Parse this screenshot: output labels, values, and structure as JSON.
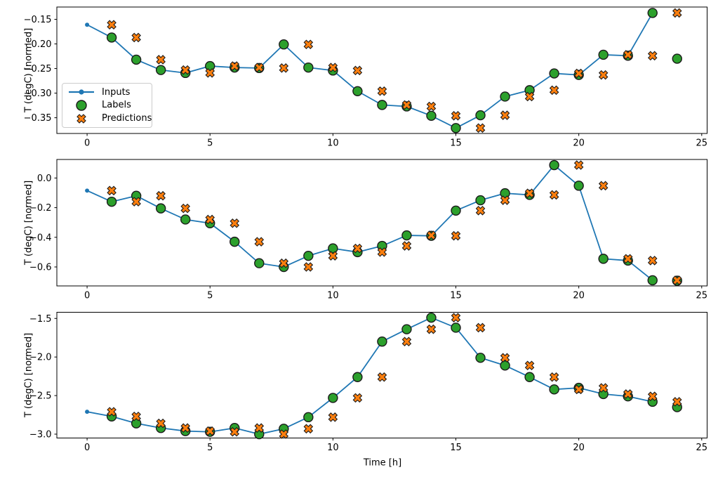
{
  "figure_title": "",
  "xlabel": "Time [h]",
  "ylabel": "T (degC) [normed]",
  "colors": {
    "inputs": "#1f77b4",
    "labels": "#2ca02c",
    "predictions": "#ff7f0e",
    "marker_edge": "#1a1a1a",
    "axis": "#000000",
    "legend_border": "#cccccc",
    "background": "#ffffff"
  },
  "legend": {
    "position": "upper-left-of-first-subplot",
    "items": [
      {
        "label": "Inputs",
        "marker": "line-with-dot"
      },
      {
        "label": "Labels",
        "marker": "filled-circle"
      },
      {
        "label": "Predictions",
        "marker": "filled-x"
      }
    ]
  },
  "xlim": [
    -1.23,
    25.22
  ],
  "xticks": {
    "values": [
      0,
      5,
      10,
      15,
      20,
      25
    ],
    "labels": [
      "0",
      "5",
      "10",
      "15",
      "20",
      "25"
    ]
  },
  "chart_data": [
    {
      "type": "line",
      "subplot": 1,
      "ylabel": "T (degC) [normed]",
      "ylim": [
        -0.382,
        -0.125
      ],
      "yticks": {
        "values": [
          -0.15,
          -0.2,
          -0.25,
          -0.3,
          -0.35
        ],
        "labels": [
          "−0.15",
          "−0.20",
          "−0.25",
          "−0.30",
          "−0.35"
        ]
      },
      "grid": false,
      "legend_visible": true,
      "series": [
        {
          "name": "Inputs",
          "x": [
            0,
            1,
            2,
            3,
            4,
            5,
            6,
            7,
            8,
            9,
            10,
            11,
            12,
            13,
            14,
            15,
            16,
            17,
            18,
            19,
            20,
            21,
            22,
            23
          ],
          "y": [
            -0.161,
            -0.187,
            -0.232,
            -0.253,
            -0.259,
            -0.245,
            -0.248,
            -0.249,
            -0.201,
            -0.248,
            -0.254,
            -0.296,
            -0.324,
            -0.327,
            -0.346,
            -0.371,
            -0.345,
            -0.307,
            -0.294,
            -0.26,
            -0.263,
            -0.222,
            -0.224,
            -0.137
          ]
        },
        {
          "name": "Labels",
          "x": [
            1,
            2,
            3,
            4,
            5,
            6,
            7,
            8,
            9,
            10,
            11,
            12,
            13,
            14,
            15,
            16,
            17,
            18,
            19,
            20,
            21,
            22,
            23,
            24
          ],
          "y": [
            -0.187,
            -0.232,
            -0.253,
            -0.259,
            -0.245,
            -0.248,
            -0.249,
            -0.201,
            -0.248,
            -0.254,
            -0.296,
            -0.324,
            -0.327,
            -0.346,
            -0.371,
            -0.345,
            -0.307,
            -0.294,
            -0.26,
            -0.263,
            -0.222,
            -0.224,
            -0.137,
            -0.23
          ]
        },
        {
          "name": "Predictions",
          "x": [
            1,
            2,
            3,
            4,
            5,
            6,
            7,
            8,
            9,
            10,
            11,
            12,
            13,
            14,
            15,
            16,
            17,
            18,
            19,
            20,
            21,
            22,
            23,
            24
          ],
          "y": [
            -0.161,
            -0.187,
            -0.232,
            -0.253,
            -0.259,
            -0.245,
            -0.248,
            -0.249,
            -0.201,
            -0.248,
            -0.254,
            -0.296,
            -0.324,
            -0.327,
            -0.346,
            -0.371,
            -0.345,
            -0.307,
            -0.294,
            -0.26,
            -0.263,
            -0.222,
            -0.224,
            -0.137
          ]
        }
      ]
    },
    {
      "type": "line",
      "subplot": 2,
      "ylabel": "T (degC) [normed]",
      "ylim": [
        -0.728,
        0.125
      ],
      "yticks": {
        "values": [
          0.0,
          -0.2,
          -0.4,
          -0.6
        ],
        "labels": [
          "0.0",
          "−0.2",
          "−0.4",
          "−0.6"
        ]
      },
      "grid": false,
      "legend_visible": false,
      "series": [
        {
          "name": "Inputs",
          "x": [
            0,
            1,
            2,
            3,
            4,
            5,
            6,
            7,
            8,
            9,
            10,
            11,
            12,
            13,
            14,
            15,
            16,
            17,
            18,
            19,
            20,
            21,
            22,
            23
          ],
          "y": [
            -0.085,
            -0.16,
            -0.12,
            -0.205,
            -0.28,
            -0.305,
            -0.43,
            -0.575,
            -0.6,
            -0.525,
            -0.475,
            -0.5,
            -0.458,
            -0.387,
            -0.39,
            -0.22,
            -0.15,
            -0.103,
            -0.114,
            0.087,
            -0.052,
            -0.545,
            -0.557,
            -0.69
          ]
        },
        {
          "name": "Labels",
          "x": [
            1,
            2,
            3,
            4,
            5,
            6,
            7,
            8,
            9,
            10,
            11,
            12,
            13,
            14,
            15,
            16,
            17,
            18,
            19,
            20,
            21,
            22,
            23,
            24
          ],
          "y": [
            -0.16,
            -0.12,
            -0.205,
            -0.28,
            -0.305,
            -0.43,
            -0.575,
            -0.6,
            -0.525,
            -0.475,
            -0.5,
            -0.458,
            -0.387,
            -0.39,
            -0.22,
            -0.15,
            -0.103,
            -0.114,
            0.087,
            -0.052,
            -0.545,
            -0.557,
            -0.69,
            -0.693
          ]
        },
        {
          "name": "Predictions",
          "x": [
            1,
            2,
            3,
            4,
            5,
            6,
            7,
            8,
            9,
            10,
            11,
            12,
            13,
            14,
            15,
            16,
            17,
            18,
            19,
            20,
            21,
            22,
            23,
            24
          ],
          "y": [
            -0.085,
            -0.16,
            -0.12,
            -0.205,
            -0.28,
            -0.305,
            -0.43,
            -0.575,
            -0.6,
            -0.525,
            -0.475,
            -0.5,
            -0.458,
            -0.387,
            -0.39,
            -0.22,
            -0.15,
            -0.103,
            -0.114,
            0.087,
            -0.052,
            -0.545,
            -0.557,
            -0.69
          ]
        }
      ]
    },
    {
      "type": "line",
      "subplot": 3,
      "ylabel": "T (degC) [normed]",
      "ylim": [
        -3.05,
        -1.42
      ],
      "yticks": {
        "values": [
          -1.5,
          -2.0,
          -2.5,
          -3.0
        ],
        "labels": [
          "−1.5",
          "−2.0",
          "−2.5",
          "−3.0"
        ]
      },
      "grid": false,
      "legend_visible": false,
      "series": [
        {
          "name": "Inputs",
          "x": [
            0,
            1,
            2,
            3,
            4,
            5,
            6,
            7,
            8,
            9,
            10,
            11,
            12,
            13,
            14,
            15,
            16,
            17,
            18,
            19,
            20,
            21,
            22,
            23
          ],
          "y": [
            -2.71,
            -2.77,
            -2.86,
            -2.92,
            -2.96,
            -2.97,
            -2.92,
            -3.0,
            -2.93,
            -2.78,
            -2.53,
            -2.26,
            -1.8,
            -1.64,
            -1.49,
            -1.62,
            -2.01,
            -2.11,
            -2.26,
            -2.42,
            -2.4,
            -2.48,
            -2.51,
            -2.58
          ]
        },
        {
          "name": "Labels",
          "x": [
            1,
            2,
            3,
            4,
            5,
            6,
            7,
            8,
            9,
            10,
            11,
            12,
            13,
            14,
            15,
            16,
            17,
            18,
            19,
            20,
            21,
            22,
            23,
            24
          ],
          "y": [
            -2.77,
            -2.86,
            -2.92,
            -2.96,
            -2.97,
            -2.92,
            -3.0,
            -2.93,
            -2.78,
            -2.53,
            -2.26,
            -1.8,
            -1.64,
            -1.49,
            -1.62,
            -2.01,
            -2.11,
            -2.26,
            -2.42,
            -2.4,
            -2.48,
            -2.51,
            -2.58,
            -2.65
          ]
        },
        {
          "name": "Predictions",
          "x": [
            1,
            2,
            3,
            4,
            5,
            6,
            7,
            8,
            9,
            10,
            11,
            12,
            13,
            14,
            15,
            16,
            17,
            18,
            19,
            20,
            21,
            22,
            23,
            24
          ],
          "y": [
            -2.71,
            -2.77,
            -2.86,
            -2.92,
            -2.96,
            -2.97,
            -2.92,
            -3.0,
            -2.93,
            -2.78,
            -2.53,
            -2.26,
            -1.8,
            -1.64,
            -1.49,
            -1.62,
            -2.01,
            -2.11,
            -2.26,
            -2.42,
            -2.4,
            -2.48,
            -2.51,
            -2.58
          ]
        }
      ]
    }
  ]
}
